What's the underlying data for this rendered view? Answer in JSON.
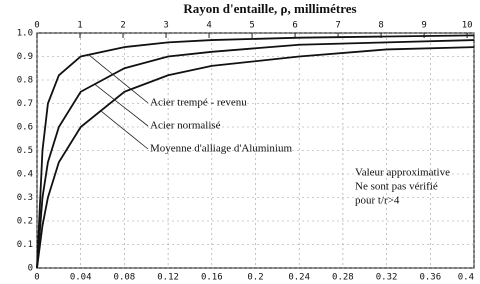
{
  "chart_data": {
    "type": "line",
    "title": "Rayon d'entaille, ρ, millimétres",
    "x": [
      0,
      0.005,
      0.01,
      0.02,
      0.04,
      0.08,
      0.12,
      0.16,
      0.24,
      0.32,
      0.4
    ],
    "series": [
      {
        "name": "Acier trempé - revenu",
        "color": "#111111",
        "values": [
          0,
          0.5,
          0.7,
          0.82,
          0.9,
          0.94,
          0.96,
          0.97,
          0.98,
          0.985,
          0.99
        ]
      },
      {
        "name": "Acier normalisé",
        "color": "#111111",
        "values": [
          0,
          0.3,
          0.45,
          0.6,
          0.75,
          0.85,
          0.9,
          0.92,
          0.95,
          0.96,
          0.97
        ]
      },
      {
        "name": "Moyenne d'alliage d'Aluminium",
        "color": "#111111",
        "values": [
          0,
          0.18,
          0.3,
          0.45,
          0.6,
          0.75,
          0.82,
          0.86,
          0.9,
          0.93,
          0.94
        ]
      }
    ],
    "xlim": [
      0,
      0.4
    ],
    "xticks": [
      0,
      0.04,
      0.08,
      0.12,
      0.16,
      0.2,
      0.24,
      0.28,
      0.32,
      0.36,
      0.4
    ],
    "x2lim": [
      0,
      10.16
    ],
    "x2ticks": [
      0,
      1,
      2,
      3,
      4,
      5,
      6,
      7,
      8,
      9,
      10
    ],
    "ylim": [
      0,
      1.0
    ],
    "yticks": [
      0,
      0.1,
      0.2,
      0.3,
      0.4,
      0.5,
      0.6,
      0.7,
      0.8,
      0.9,
      {
        "value": 1.0,
        "label": "1.0"
      }
    ],
    "grid": true,
    "annotation": [
      "Valeur approximative",
      "Ne sont pas vérifié",
      "pour  t/r>4"
    ]
  }
}
